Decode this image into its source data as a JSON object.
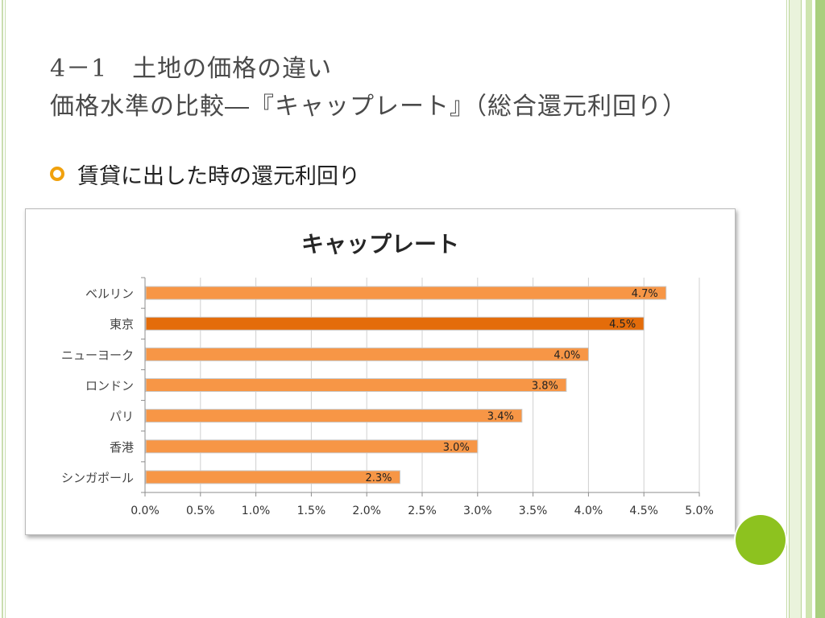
{
  "slide": {
    "title_line1": "4－1　土地の価格の違い",
    "title_line2": "価格水準の比較―『キャップレート』（総合還元利回り）",
    "bullet_text": "賃貸に出した時の還元利回り"
  },
  "colors": {
    "bar": "#f79646",
    "bar_highlight": "#e46c0a",
    "accent_dot": "#8dc21f",
    "bullet": "#f0a10d"
  },
  "chart_data": {
    "type": "bar",
    "orientation": "horizontal",
    "title": "キャップレート",
    "categories": [
      "ベルリン",
      "東京",
      "ニューヨーク",
      "ロンドン",
      "パリ",
      "香港",
      "シンガポール"
    ],
    "values": [
      4.7,
      4.5,
      4.0,
      3.8,
      3.4,
      3.0,
      2.3
    ],
    "value_labels": [
      "4.7%",
      "4.5%",
      "4.0%",
      "3.8%",
      "3.4%",
      "3.0%",
      "2.3%"
    ],
    "highlight": "東京",
    "xlim": [
      0,
      5
    ],
    "x_ticks": [
      "0.0%",
      "0.5%",
      "1.0%",
      "1.5%",
      "2.0%",
      "2.5%",
      "3.0%",
      "3.5%",
      "4.0%",
      "4.5%",
      "5.0%"
    ],
    "grid": "vertical",
    "legend": "none"
  }
}
